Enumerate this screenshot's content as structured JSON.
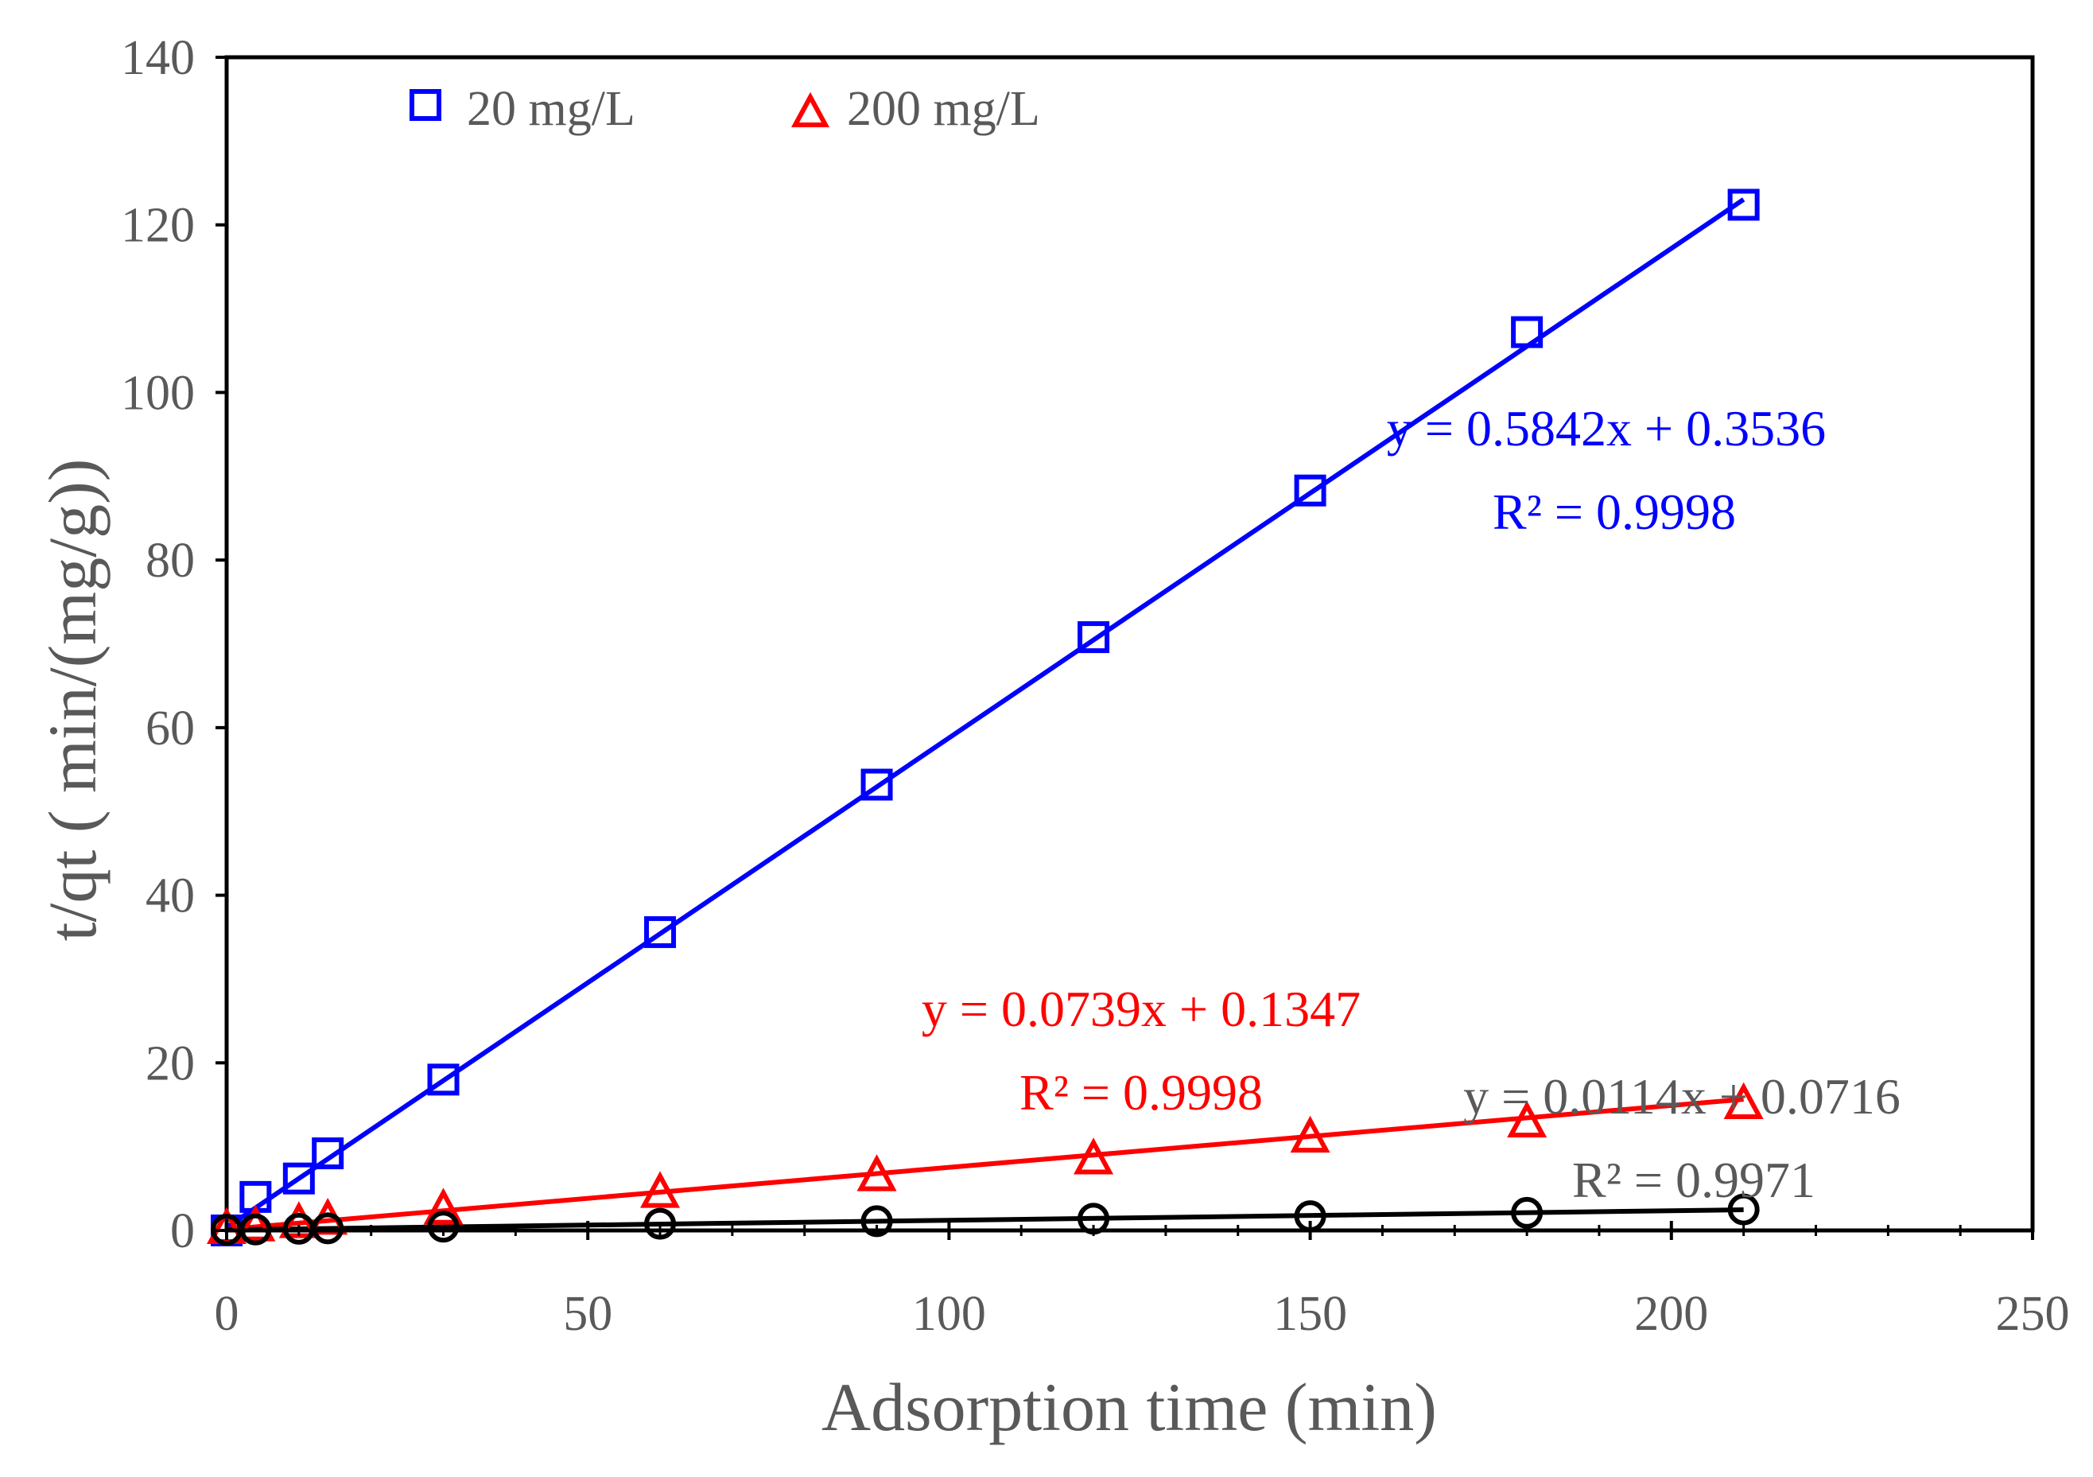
{
  "chart_data": {
    "type": "scatter",
    "title": "",
    "xlabel": "Adsorption time (min)",
    "ylabel": "t/qt ( min/(mg/g))",
    "xlim": [
      0,
      250
    ],
    "ylim": [
      0,
      140
    ],
    "x_ticks": [
      0,
      50,
      100,
      150,
      200,
      250
    ],
    "y_ticks": [
      0,
      20,
      40,
      60,
      80,
      100,
      120,
      140
    ],
    "grid": false,
    "legend_position": "top-left",
    "series": [
      {
        "name": "20 mg/L",
        "color": "#0000ff",
        "marker": "square",
        "in_legend": true,
        "x": [
          0,
          4,
          10,
          14,
          30,
          60,
          90,
          120,
          150,
          180,
          210
        ],
        "y": [
          0,
          4,
          6.2,
          9.2,
          18,
          35.6,
          53.2,
          70.8,
          88.3,
          107.2,
          122.4
        ],
        "fit": {
          "slope": 0.5842,
          "intercept": 0.3536
        }
      },
      {
        "name": "200 mg/L",
        "color": "#ff0000",
        "marker": "triangle",
        "in_legend": true,
        "x": [
          0,
          4,
          10,
          14,
          30,
          60,
          90,
          120,
          150,
          180,
          210
        ],
        "y": [
          0.1,
          0.4,
          0.8,
          1.2,
          2.4,
          4.4,
          6.4,
          8.4,
          11,
          12.8,
          15
        ],
        "fit": {
          "slope": 0.0739,
          "intercept": 0.1347
        }
      },
      {
        "name": "",
        "color": "#000000",
        "marker": "circle",
        "in_legend": false,
        "x": [
          0,
          4,
          10,
          14,
          30,
          60,
          90,
          120,
          150,
          180,
          210
        ],
        "y": [
          0.08,
          0.12,
          0.2,
          0.25,
          0.45,
          0.8,
          1.1,
          1.4,
          1.7,
          2.1,
          2.5
        ],
        "fit": {
          "slope": 0.0114,
          "intercept": 0.0716
        }
      }
    ],
    "annotations": [
      {
        "text": "y = 0.5842x + 0.3536",
        "color": "#0000ff"
      },
      {
        "text": "R² = 0.9998",
        "color": "#0000ff"
      },
      {
        "text": "y = 0.0739x + 0.1347",
        "color": "#ff0000"
      },
      {
        "text": "R² = 0.9998",
        "color": "#ff0000"
      },
      {
        "text": "y = 0.0114x + 0.0716",
        "color": "#595959"
      },
      {
        "text": "R² = 0.9971",
        "color": "#595959"
      }
    ]
  }
}
